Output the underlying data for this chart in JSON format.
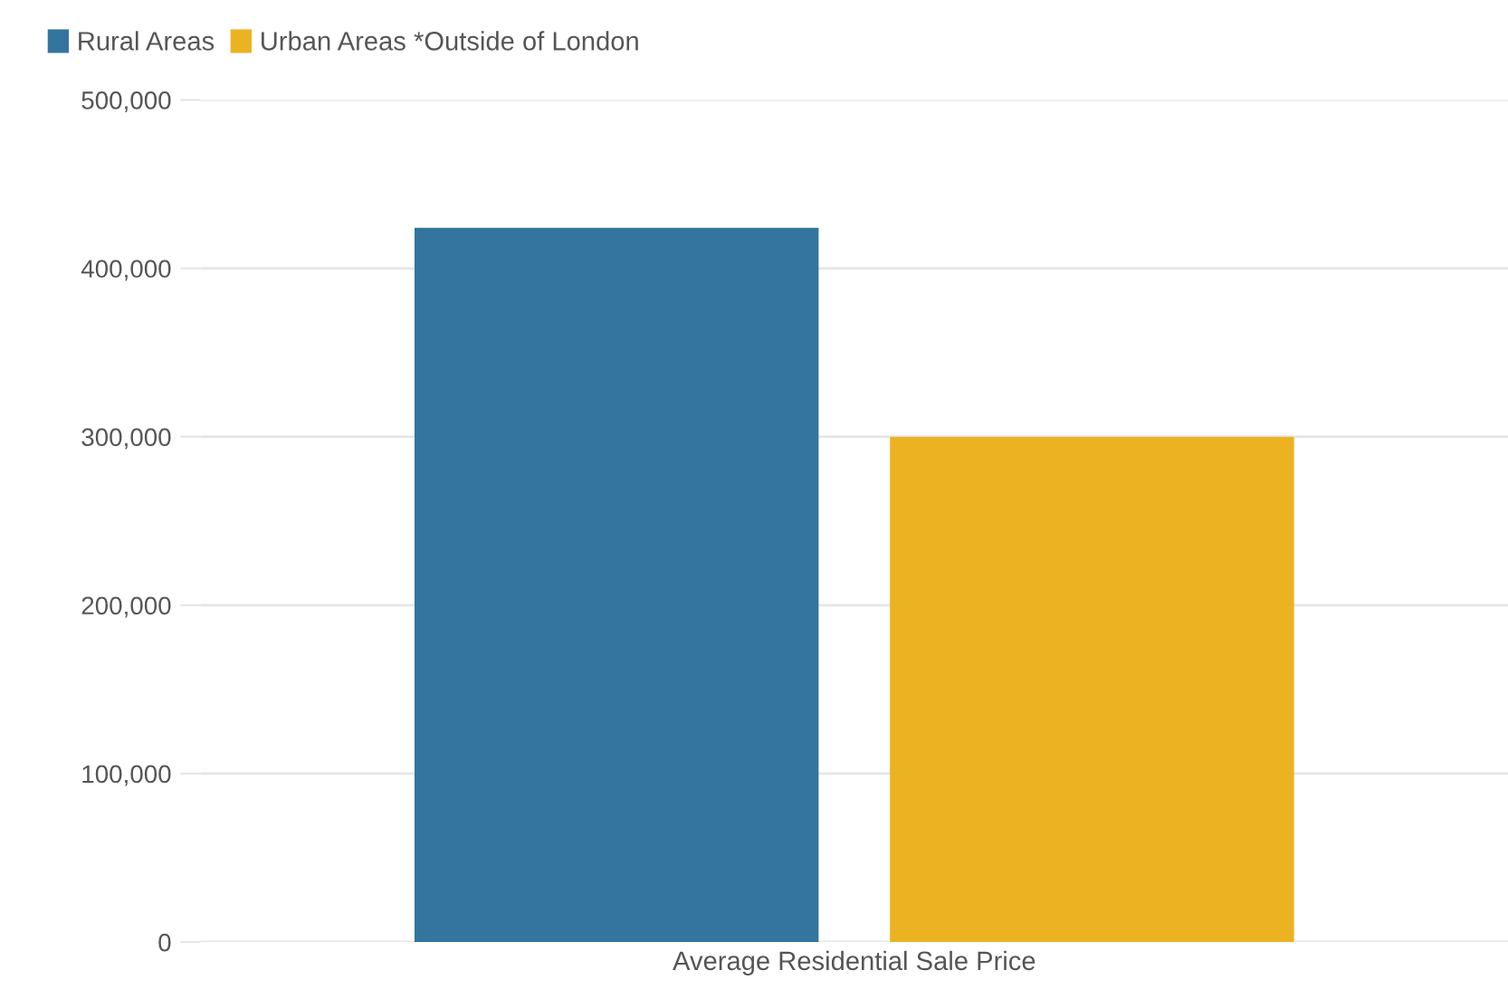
{
  "chart_data": {
    "type": "bar",
    "categories": [
      "Average Residential Sale Price"
    ],
    "series": [
      {
        "name": "Rural Areas",
        "color": "#33759e",
        "values": [
          424000
        ]
      },
      {
        "name": "Urban Areas *Outside of London",
        "color": "#ebb322",
        "values": [
          300000
        ]
      }
    ],
    "ylim": [
      0,
      500000
    ],
    "yticks": [
      {
        "value": 0,
        "label": "0"
      },
      {
        "value": 100000,
        "label": "100,000"
      },
      {
        "value": 200000,
        "label": "200,000"
      },
      {
        "value": 300000,
        "label": "300,000"
      },
      {
        "value": 400000,
        "label": "400,000"
      },
      {
        "value": 500000,
        "label": "500,000"
      }
    ],
    "grid": "y",
    "legend": "top left"
  }
}
